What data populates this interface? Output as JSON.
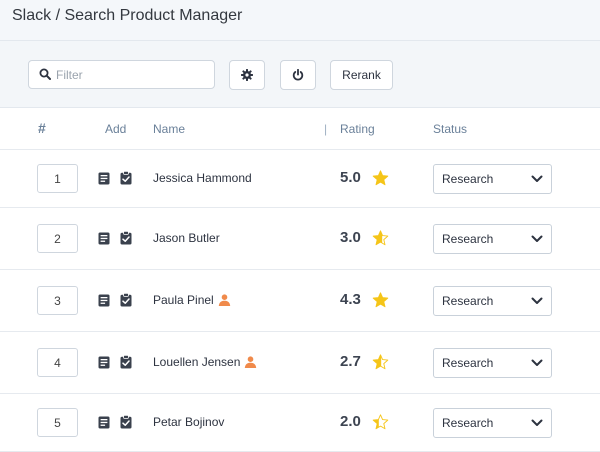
{
  "window": {
    "title": "Slack / Search Product Manager"
  },
  "toolbar": {
    "filter_placeholder": "Filter",
    "filter_value": "",
    "settings_icon": "gear-icon",
    "power_icon": "power-icon",
    "rerank_label": "Rerank"
  },
  "table": {
    "headers": {
      "num": "#",
      "add": "Add",
      "name": "Name",
      "separator": "|",
      "rating": "Rating",
      "status": "Status"
    },
    "rows": [
      {
        "rank": "1",
        "name": "Jessica Hammond",
        "flag": false,
        "rating": "5.0",
        "stars": 5.0,
        "status": "Research"
      },
      {
        "rank": "2",
        "name": "Jason Butler",
        "flag": false,
        "rating": "3.0",
        "stars": 3.0,
        "status": "Research"
      },
      {
        "rank": "3",
        "name": "Paula Pinel",
        "flag": true,
        "rating": "4.3",
        "stars": 4.3,
        "status": "Research"
      },
      {
        "rank": "4",
        "name": "Louellen Jensen",
        "flag": true,
        "rating": "2.7",
        "stars": 2.7,
        "status": "Research"
      },
      {
        "rank": "5",
        "name": "Petar Bojinov",
        "flag": false,
        "rating": "2.0",
        "stars": 2.0,
        "status": "Research"
      }
    ]
  },
  "colors": {
    "star": "#f5c518",
    "person": "#f08a4b",
    "header_text": "#6a8099",
    "toolbar_bg": "#f3f6f9"
  }
}
